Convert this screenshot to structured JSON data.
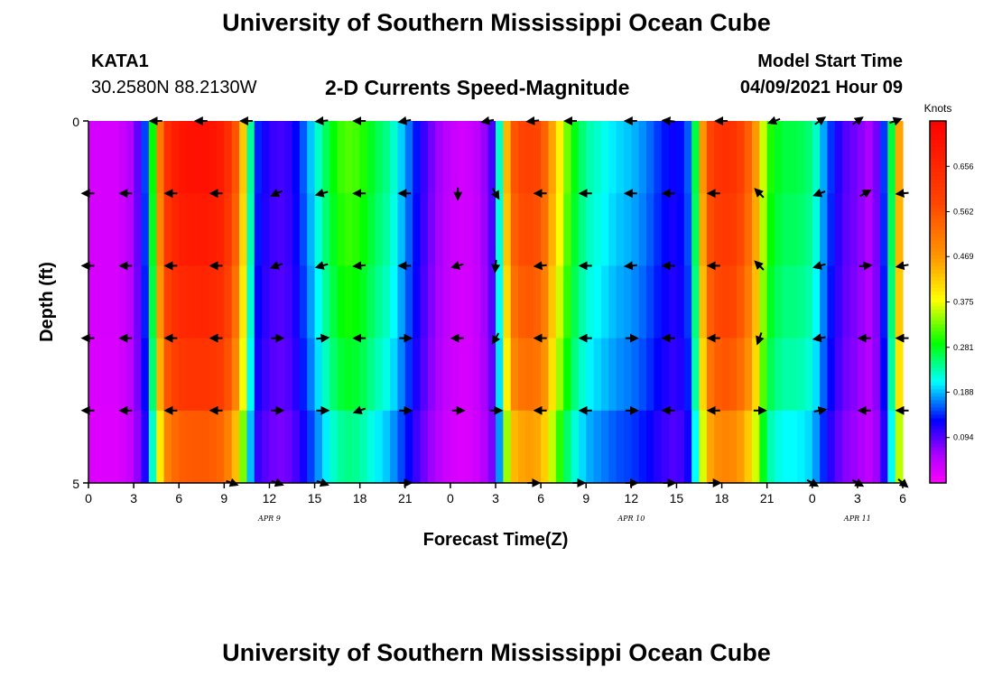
{
  "header": {
    "title": "University of Southern Mississippi Ocean Cube",
    "station": "KATA1",
    "coords": "30.2580N  88.2130W",
    "subtitle": "2-D Currents Speed-Magnitude",
    "model_start_label": "Model Start Time",
    "model_start_value": "04/09/2021 Hour 09"
  },
  "footer": {
    "title": "University of Southern Mississippi Ocean Cube"
  },
  "chart_data": {
    "type": "heatmap",
    "title": "2-D Currents Speed-Magnitude",
    "xlabel": "Forecast Time(Z)",
    "ylabel": "Depth (ft)",
    "y_ticks": [
      "0",
      "5"
    ],
    "ylim": [
      0,
      5
    ],
    "x_tick_labels": [
      "0",
      "3",
      "6",
      "9",
      "12",
      "15",
      "18",
      "21",
      "0",
      "3",
      "6",
      "9",
      "12",
      "15",
      "18",
      "21",
      "0",
      "3",
      "6"
    ],
    "date_labels": [
      {
        "text": "APR  9",
        "hour": 12
      },
      {
        "text": "APR  10",
        "hour": 36
      },
      {
        "text": "APR  11",
        "hour": 51
      }
    ],
    "hours_range": [
      0,
      54
    ],
    "colorbar": {
      "title": "Knots",
      "ticks": [
        "0.094",
        "0.188",
        "0.281",
        "0.375",
        "0.469",
        "0.562",
        "0.656"
      ],
      "range": [
        0,
        0.75
      ]
    },
    "speed_profile_knots": [
      [
        0,
        0.03
      ],
      [
        1,
        0.03
      ],
      [
        2,
        0.03
      ],
      [
        3,
        0.06
      ],
      [
        4,
        0.18
      ],
      [
        5,
        0.62
      ],
      [
        6,
        0.7
      ],
      [
        7,
        0.71
      ],
      [
        8,
        0.71
      ],
      [
        9,
        0.68
      ],
      [
        10,
        0.52
      ],
      [
        11,
        0.15
      ],
      [
        12,
        0.11
      ],
      [
        13,
        0.1
      ],
      [
        14,
        0.14
      ],
      [
        15,
        0.21
      ],
      [
        16,
        0.28
      ],
      [
        17,
        0.32
      ],
      [
        18,
        0.31
      ],
      [
        19,
        0.27
      ],
      [
        20,
        0.24
      ],
      [
        21,
        0.18
      ],
      [
        22,
        0.12
      ],
      [
        23,
        0.07
      ],
      [
        24,
        0.04
      ],
      [
        25,
        0.03
      ],
      [
        26,
        0.05
      ],
      [
        27,
        0.12
      ],
      [
        28,
        0.55
      ],
      [
        29,
        0.6
      ],
      [
        30,
        0.58
      ],
      [
        31,
        0.42
      ],
      [
        32,
        0.3
      ],
      [
        33,
        0.24
      ],
      [
        34,
        0.22
      ],
      [
        35,
        0.2
      ],
      [
        36,
        0.19
      ],
      [
        37,
        0.17
      ],
      [
        38,
        0.14
      ],
      [
        39,
        0.12
      ],
      [
        40,
        0.17
      ],
      [
        41,
        0.57
      ],
      [
        42,
        0.64
      ],
      [
        43,
        0.62
      ],
      [
        44,
        0.52
      ],
      [
        45,
        0.31
      ],
      [
        46,
        0.27
      ],
      [
        47,
        0.27
      ],
      [
        48,
        0.25
      ],
      [
        49,
        0.16
      ],
      [
        50,
        0.1
      ],
      [
        51,
        0.08
      ],
      [
        52,
        0.05
      ],
      [
        53,
        0.18
      ],
      [
        54,
        0.55
      ]
    ],
    "depth_factor": [
      1.0,
      0.97,
      0.93,
      0.88,
      0.78
    ],
    "vector_rows": [
      {
        "depth_row": 0,
        "hours": [
          4.5,
          7.5,
          10.5,
          15.5,
          18,
          21,
          26.5,
          29.5,
          32,
          36,
          38.5,
          42,
          45.5,
          48.5,
          51,
          53.5
        ],
        "angles": [
          180,
          180,
          180,
          185,
          180,
          190,
          190,
          185,
          180,
          180,
          175,
          180,
          200,
          35,
          35,
          20
        ]
      },
      {
        "depth_row": 1,
        "hours": [
          0,
          2.5,
          5.5,
          8.5,
          12.5,
          15.5,
          18,
          21,
          24.5,
          27,
          30,
          33,
          36,
          38.5,
          41.5,
          44.5,
          48.5,
          51.5,
          54
        ],
        "angles": [
          180,
          180,
          180,
          180,
          205,
          195,
          180,
          180,
          270,
          300,
          180,
          180,
          180,
          180,
          180,
          135,
          200,
          30,
          185
        ]
      },
      {
        "depth_row": 2,
        "hours": [
          0,
          2.5,
          5.5,
          8.5,
          12.5,
          15.5,
          18,
          21,
          24.5,
          27,
          30,
          33,
          36,
          38.5,
          41.5,
          44.5,
          48.5,
          51.5,
          54
        ],
        "angles": [
          180,
          180,
          180,
          180,
          200,
          195,
          185,
          180,
          195,
          265,
          185,
          180,
          185,
          180,
          180,
          135,
          195,
          5,
          190
        ]
      },
      {
        "depth_row": 3,
        "hours": [
          0,
          2.5,
          5.5,
          8.5,
          12.5,
          15.5,
          18,
          21,
          24.5,
          27,
          30,
          33,
          36,
          38.5,
          41.5,
          44.5,
          48.5,
          51.5,
          54
        ],
        "angles": [
          180,
          180,
          180,
          180,
          0,
          5,
          180,
          0,
          180,
          240,
          180,
          180,
          0,
          180,
          180,
          250,
          190,
          180,
          180
        ]
      },
      {
        "depth_row": 4,
        "hours": [
          0,
          2.5,
          5.5,
          8.5,
          12.5,
          15.5,
          18,
          21,
          24.5,
          27,
          30,
          33,
          36,
          38.5,
          41.5,
          44.5,
          48.5,
          51.5,
          54
        ],
        "angles": [
          180,
          180,
          180,
          180,
          0,
          0,
          200,
          0,
          0,
          0,
          180,
          180,
          0,
          180,
          180,
          0,
          10,
          180,
          180
        ]
      },
      {
        "depth_row": 5,
        "hours": [
          9.5,
          12.5,
          15.5,
          21,
          29.5,
          32.5,
          36,
          38.5,
          41.5,
          48,
          51,
          54
        ],
        "angles": [
          340,
          340,
          340,
          0,
          0,
          0,
          0,
          0,
          0,
          330,
          330,
          320
        ]
      }
    ]
  }
}
